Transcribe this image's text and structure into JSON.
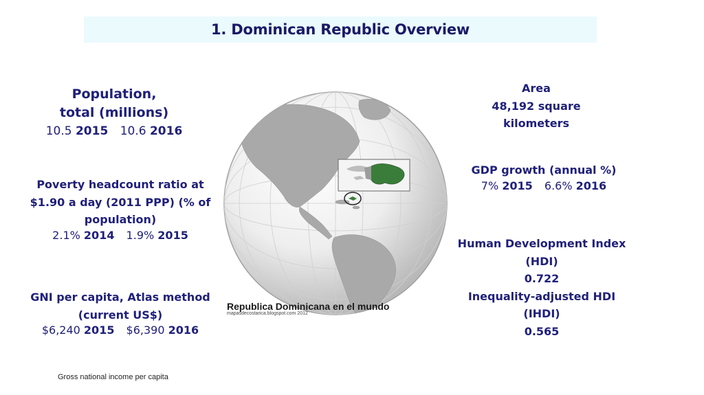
{
  "title": "1. Dominican Republic Overview",
  "population": {
    "heading": "Population,\ntotal (millions)",
    "values": [
      {
        "value": "10.5",
        "year": "2015"
      },
      {
        "value": "10.6",
        "year": "2016"
      }
    ]
  },
  "poverty": {
    "heading": "Poverty headcount ratio at $1.90 a day (2011 PPP) (% of population)",
    "values": [
      {
        "value": "2.1%",
        "year": "2014"
      },
      {
        "value": "1.9%",
        "year": "2015"
      }
    ]
  },
  "gni": {
    "heading": "GNI per capita, Atlas method (current US$)",
    "values": [
      {
        "value": "$6,240",
        "year": "2015"
      },
      {
        "value": "$6,390",
        "year": "2016"
      }
    ]
  },
  "area": {
    "heading": "Area",
    "value": "48,192 square kilometers"
  },
  "gdp": {
    "heading": "GDP growth (annual %)",
    "values": [
      {
        "value": "7%",
        "year": "2015"
      },
      {
        "value": "6.6%",
        "year": "2016"
      }
    ]
  },
  "hdi": {
    "heading": "Human Development Index (HDI)",
    "value": "0.722",
    "ihdi_heading": "Inequality-adjusted HDI (IHDI)",
    "ihdi_value": "0.565"
  },
  "map": {
    "caption": "Republica Dominicana en el mundo",
    "source": "mapasdecostarica.blogspot.com 2012",
    "highlight_color": "#3a7d3a"
  },
  "footnote": "Gross national income per capita"
}
